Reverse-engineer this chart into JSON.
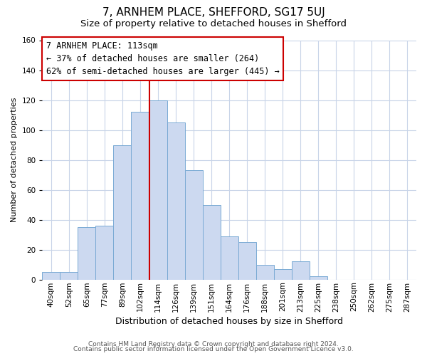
{
  "title": "7, ARNHEM PLACE, SHEFFORD, SG17 5UJ",
  "subtitle": "Size of property relative to detached houses in Shefford",
  "xlabel": "Distribution of detached houses by size in Shefford",
  "ylabel": "Number of detached properties",
  "bar_labels": [
    "40sqm",
    "52sqm",
    "65sqm",
    "77sqm",
    "89sqm",
    "102sqm",
    "114sqm",
    "126sqm",
    "139sqm",
    "151sqm",
    "164sqm",
    "176sqm",
    "188sqm",
    "201sqm",
    "213sqm",
    "225sqm",
    "238sqm",
    "250sqm",
    "262sqm",
    "275sqm",
    "287sqm"
  ],
  "bar_values": [
    5,
    5,
    35,
    36,
    90,
    112,
    120,
    105,
    73,
    50,
    29,
    25,
    10,
    7,
    12,
    2,
    0,
    0,
    0,
    0,
    0
  ],
  "bar_color": "#ccd9f0",
  "bar_edge_color": "#7aaad4",
  "vline_color": "#cc0000",
  "annotation_line1": "7 ARNHEM PLACE: 113sqm",
  "annotation_line2": "← 37% of detached houses are smaller (264)",
  "annotation_line3": "62% of semi-detached houses are larger (445) →",
  "annotation_box_facecolor": "#ffffff",
  "annotation_box_edgecolor": "#cc0000",
  "ylim": [
    0,
    160
  ],
  "yticks": [
    0,
    20,
    40,
    60,
    80,
    100,
    120,
    140,
    160
  ],
  "footer1": "Contains HM Land Registry data © Crown copyright and database right 2024.",
  "footer2": "Contains public sector information licensed under the Open Government Licence v3.0.",
  "title_fontsize": 11,
  "subtitle_fontsize": 9.5,
  "xlabel_fontsize": 9,
  "ylabel_fontsize": 8,
  "tick_fontsize": 7.5,
  "annotation_fontsize": 8.5,
  "footer_fontsize": 6.5,
  "background_color": "#ffffff",
  "grid_color": "#c8d4e8"
}
